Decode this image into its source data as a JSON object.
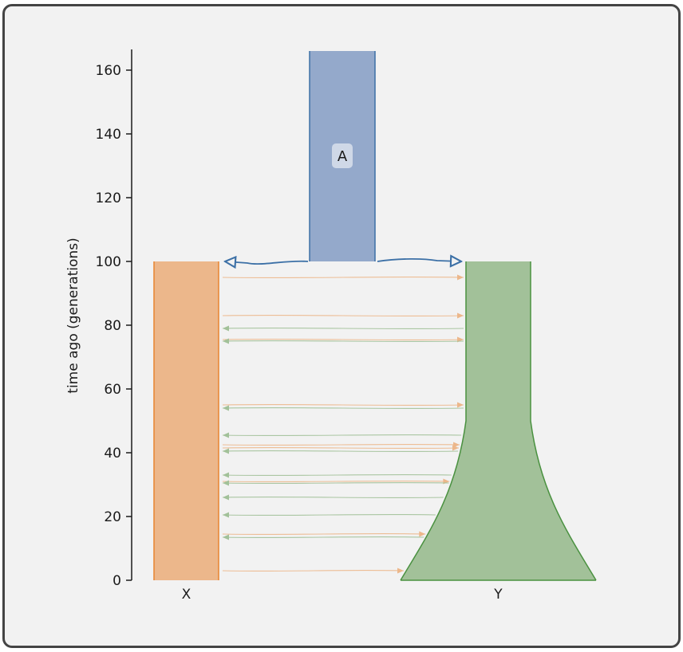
{
  "chart_data": {
    "type": "demography",
    "ylabel": "time ago (generations)",
    "ylim": [
      0,
      166
    ],
    "yticks": [
      "0",
      "20",
      "40",
      "60",
      "80",
      "100",
      "120",
      "140",
      "160"
    ],
    "ytick_values": [
      0,
      20,
      40,
      60,
      80,
      100,
      120,
      140,
      160
    ],
    "grid": false,
    "populations": [
      {
        "name": "A",
        "label": "A",
        "color": "#94a9cb",
        "edge": "#3c70a6",
        "start_time": 100,
        "end_time": 166,
        "show_label": true
      },
      {
        "name": "X",
        "label": "X",
        "color": "#ecb78b",
        "edge": "#e8842f",
        "start_time": 0,
        "end_time": 100,
        "show_label": false
      },
      {
        "name": "Y",
        "label": "Y",
        "color": "#a2c199",
        "edge": "#4a9140",
        "start_time": 0,
        "end_time": 100,
        "growth_start_time": 50,
        "show_label": false
      }
    ],
    "splits": [
      {
        "parent": "A",
        "child": "X",
        "time": 100
      },
      {
        "parent": "A",
        "child": "Y",
        "time": 100
      }
    ],
    "migration_pulses": [
      {
        "source": "X",
        "dest": "Y",
        "time": 95
      },
      {
        "source": "X",
        "dest": "Y",
        "time": 83
      },
      {
        "source": "Y",
        "dest": "X",
        "time": 79
      },
      {
        "source": "X",
        "dest": "Y",
        "time": 75.5
      },
      {
        "source": "Y",
        "dest": "X",
        "time": 75
      },
      {
        "source": "X",
        "dest": "Y",
        "time": 55
      },
      {
        "source": "Y",
        "dest": "X",
        "time": 54
      },
      {
        "source": "Y",
        "dest": "X",
        "time": 45.5
      },
      {
        "source": "X",
        "dest": "Y",
        "time": 42.5
      },
      {
        "source": "X",
        "dest": "Y",
        "time": 41.5
      },
      {
        "source": "Y",
        "dest": "X",
        "time": 40.5
      },
      {
        "source": "Y",
        "dest": "X",
        "time": 33
      },
      {
        "source": "X",
        "dest": "Y",
        "time": 31
      },
      {
        "source": "Y",
        "dest": "X",
        "time": 30.5
      },
      {
        "source": "Y",
        "dest": "X",
        "time": 26
      },
      {
        "source": "Y",
        "dest": "X",
        "time": 20.5
      },
      {
        "source": "X",
        "dest": "Y",
        "time": 14.5
      },
      {
        "source": "Y",
        "dest": "X",
        "time": 13.5
      },
      {
        "source": "X",
        "dest": "Y",
        "time": 3
      }
    ]
  }
}
